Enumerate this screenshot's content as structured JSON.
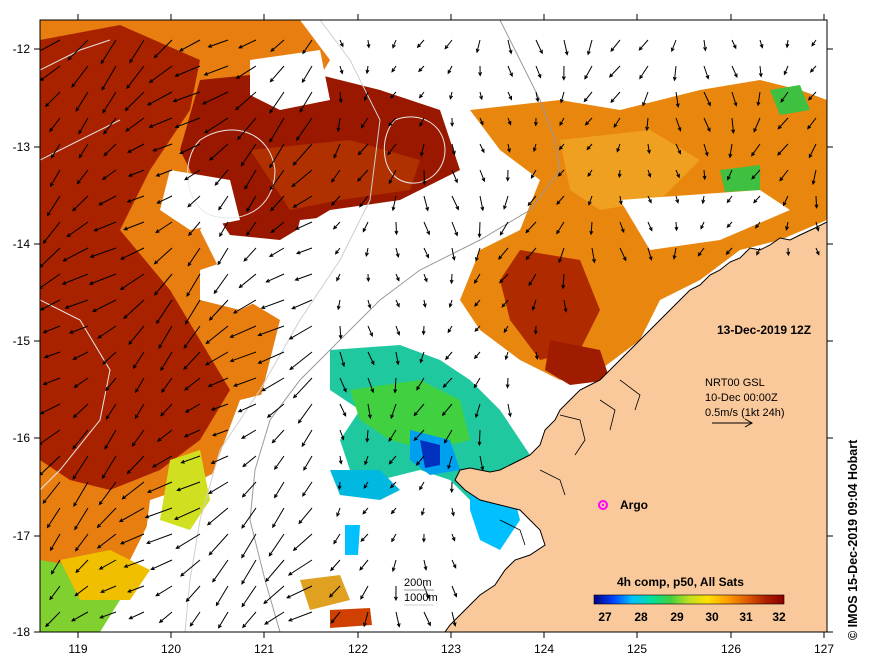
{
  "map": {
    "x_ticks": [
      "119",
      "120",
      "121",
      "122",
      "123",
      "124",
      "125",
      "126",
      "127"
    ],
    "y_ticks": [
      "-12",
      "-13",
      "-14",
      "-15",
      "-16",
      "-17",
      "-18"
    ],
    "date_label": "13-Dec-2019 12Z",
    "current_source": "NRT00 GSL",
    "current_time": "10-Dec 00:00Z",
    "current_scale": "0.5m/s (1kt 24h)",
    "argo_label": "Argo",
    "contour_200m": "200m",
    "contour_1000m": "1000m",
    "colorbar": {
      "title": "4h comp, p50, All Sats",
      "ticks": [
        "27",
        "28",
        "29",
        "30",
        "31",
        "32"
      ],
      "stops": [
        "#000080",
        "#0040ff",
        "#00c0ff",
        "#00e0a0",
        "#40d040",
        "#c0e020",
        "#ffe000",
        "#ffa000",
        "#e06000",
        "#b02000",
        "#8b0000"
      ]
    },
    "credit": "© IMOS 15-Dec-2019 09:04 Hobart",
    "colors": {
      "land": "#f9c89b",
      "argo": "#ff00ff"
    }
  }
}
